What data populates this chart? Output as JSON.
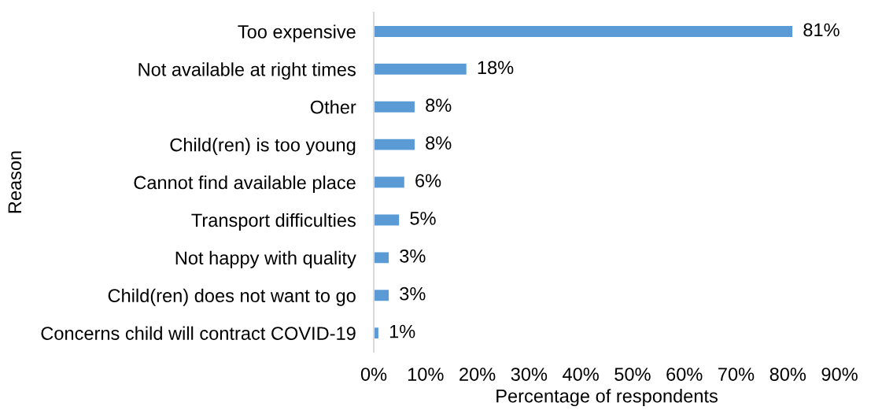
{
  "chart_data": {
    "type": "bar",
    "orientation": "horizontal",
    "xlabel": "Percentage of respondents",
    "ylabel": "Reason",
    "categories": [
      "Too expensive",
      "Not available at right times",
      "Other",
      "Child(ren) is too young",
      "Cannot find available place",
      "Transport difficulties",
      "Not happy with quality",
      "Child(ren) does not want to go",
      "Concerns child will contract COVID-19"
    ],
    "values": [
      81,
      18,
      8,
      8,
      6,
      5,
      3,
      3,
      1
    ],
    "value_labels": [
      "81%",
      "18%",
      "8%",
      "8%",
      "6%",
      "5%",
      "3%",
      "3%",
      "1%"
    ],
    "color": "#5b9bd5",
    "xlim": [
      0,
      90
    ],
    "xticks": [
      {
        "value": 0,
        "label": "0%"
      },
      {
        "value": 10,
        "label": "10%"
      },
      {
        "value": 20,
        "label": "20%"
      },
      {
        "value": 30,
        "label": "30%"
      },
      {
        "value": 40,
        "label": "40%"
      },
      {
        "value": 50,
        "label": "50%"
      },
      {
        "value": 60,
        "label": "60%"
      },
      {
        "value": 70,
        "label": "70%"
      },
      {
        "value": 80,
        "label": "80%"
      },
      {
        "value": 90,
        "label": "90%"
      }
    ],
    "grid": false,
    "legend": false
  }
}
